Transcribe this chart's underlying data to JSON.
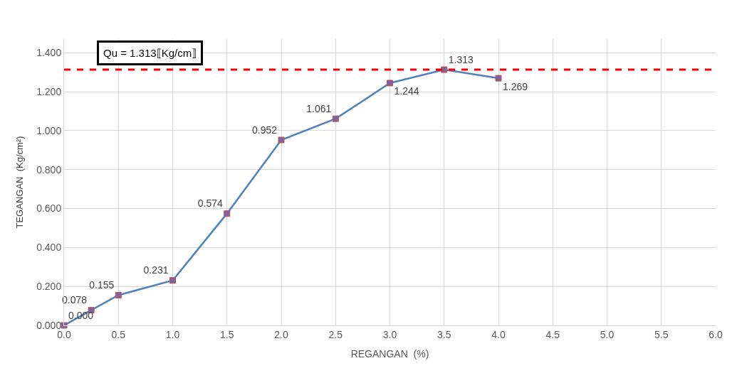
{
  "chart_data": {
    "type": "line",
    "xlabel": "REGANGAN  (%)",
    "ylabel": "TEGANGAN  (Kg/cm²)",
    "x": [
      0,
      0.25,
      0.5,
      1,
      1.5,
      2,
      2.5,
      3,
      3.5,
      4
    ],
    "series": [
      {
        "color": "#4f81bd",
        "values": [
          0,
          0.078,
          0.155,
          0.231,
          0.574,
          0.952,
          1.061,
          1.244,
          1.313,
          1.269
        ],
        "value_labels": [
          "0.000",
          "0.078",
          "0.155",
          "0.231",
          "0.574",
          "0.952",
          "1.061",
          "1.244",
          "1.313",
          "1.269"
        ]
      }
    ],
    "xlim": [
      0,
      6
    ],
    "xticks": [
      {
        "value": 0,
        "label": "0.0"
      },
      {
        "value": 0.5,
        "label": "0.5"
      },
      {
        "value": 1,
        "label": "1.0"
      },
      {
        "value": 1.5,
        "label": "1.5"
      },
      {
        "value": 2,
        "label": "2.0"
      },
      {
        "value": 2.5,
        "label": "2.5"
      },
      {
        "value": 3,
        "label": "3.0"
      },
      {
        "value": 3.5,
        "label": "3.5"
      },
      {
        "value": 4,
        "label": "4.0"
      },
      {
        "value": 4.5,
        "label": "4.5"
      },
      {
        "value": 5,
        "label": "5.0"
      },
      {
        "value": 5.5,
        "label": "5.5"
      },
      {
        "value": 6,
        "label": "6.0"
      }
    ],
    "ylim": [
      0,
      1.47
    ],
    "yticks": [
      {
        "value": 0,
        "label": "0.000"
      },
      {
        "value": 0.2,
        "label": "0.200"
      },
      {
        "value": 0.4,
        "label": "0.400"
      },
      {
        "value": 0.6,
        "label": "0.600"
      },
      {
        "value": 0.8,
        "label": "0.800"
      },
      {
        "value": 1.0,
        "label": "1.000"
      },
      {
        "value": 1.2,
        "label": "1.200"
      },
      {
        "value": 1.4,
        "label": "1.400"
      }
    ],
    "ref_lines": [
      {
        "axis": "y",
        "value": 1.313,
        "label": "Qu = 1.313⟦Kg/cm⟧",
        "color": "#ff0000",
        "line_style": "dashed"
      }
    ],
    "grid": true,
    "marker": "square",
    "line_style": "solid",
    "legend": false
  }
}
